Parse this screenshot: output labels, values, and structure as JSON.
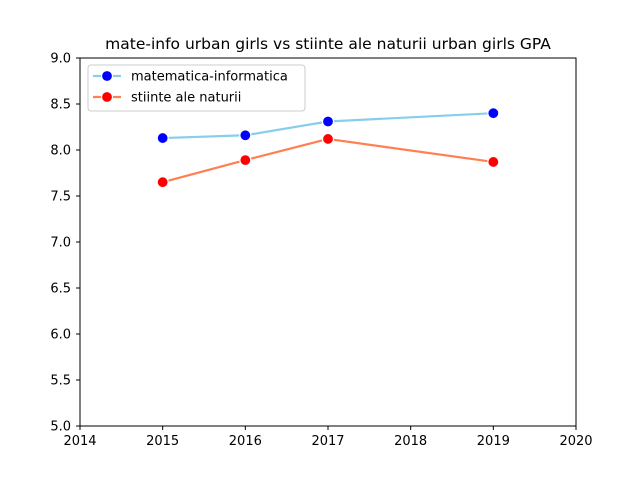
{
  "chart_data": {
    "type": "line",
    "title": "mate-info urban girls vs stiinte ale naturii urban girls GPA",
    "xlabel": "",
    "ylabel": "",
    "xlim": [
      2014,
      2020
    ],
    "ylim": [
      5.0,
      9.0
    ],
    "x_ticks": [
      "2014",
      "2015",
      "2016",
      "2017",
      "2018",
      "2019",
      "2020"
    ],
    "y_ticks": [
      "5.0",
      "5.5",
      "6.0",
      "6.5",
      "7.0",
      "7.5",
      "8.0",
      "8.5",
      "9.0"
    ],
    "grid": false,
    "legend_position": "top-left",
    "series": [
      {
        "name": "matematica-informatica",
        "x": [
          2015,
          2016,
          2017,
          2019
        ],
        "values": [
          8.13,
          8.16,
          8.31,
          8.4
        ],
        "line_color": "#87ceeb",
        "marker_color": "#0000ff"
      },
      {
        "name": "stiinte ale naturii",
        "x": [
          2015,
          2016,
          2017,
          2019
        ],
        "values": [
          7.65,
          7.89,
          8.12,
          7.87
        ],
        "line_color": "#ff7f50",
        "marker_color": "#ff0000"
      }
    ]
  }
}
